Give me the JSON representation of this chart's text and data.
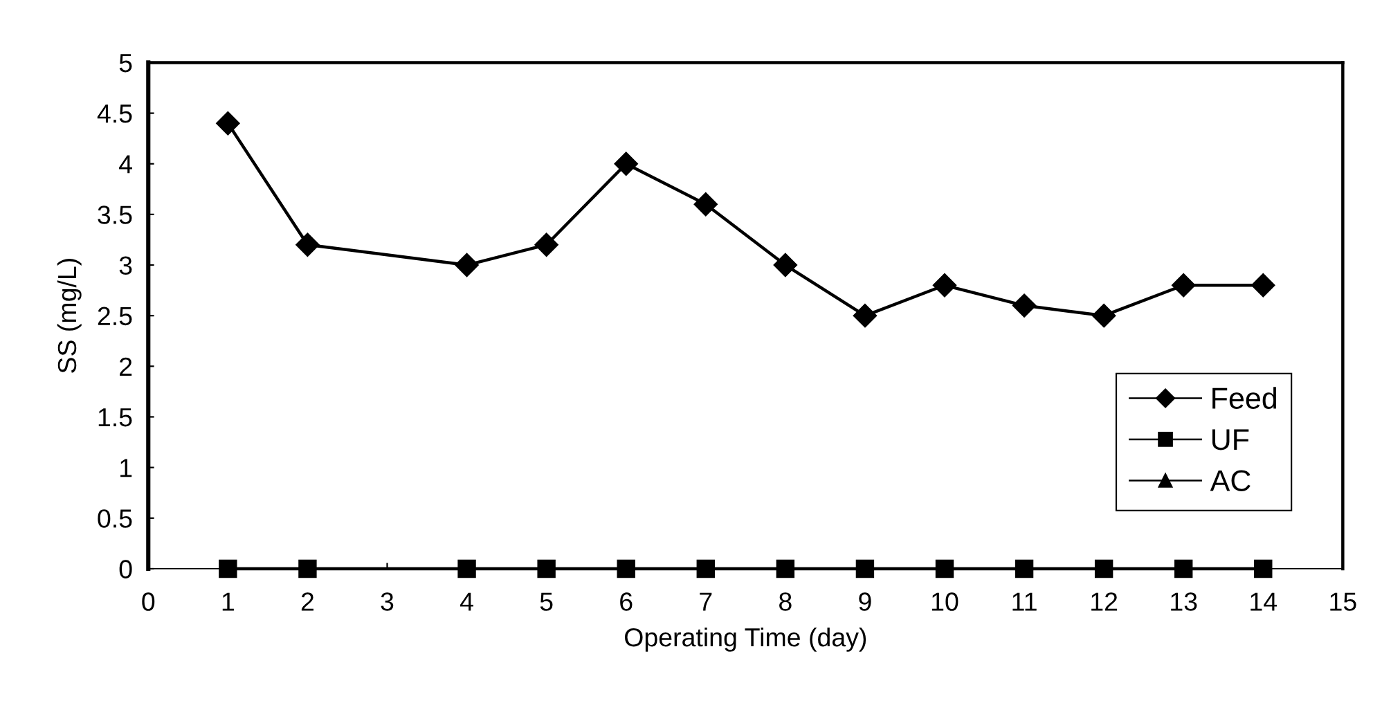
{
  "chart_data": {
    "type": "line",
    "xlabel": "Operating Time (day)",
    "ylabel": "SS (mg/L)",
    "x": [
      1,
      2,
      4,
      5,
      6,
      7,
      8,
      9,
      10,
      11,
      12,
      13,
      14
    ],
    "series": [
      {
        "name": "Feed",
        "color": "#000000",
        "marker": "diamond",
        "values": [
          4.4,
          3.2,
          3.0,
          3.2,
          4.0,
          3.6,
          3.0,
          2.5,
          2.8,
          2.6,
          2.5,
          2.8,
          2.8
        ]
      },
      {
        "name": "UF",
        "color": "#000000",
        "marker": "square",
        "values": [
          0,
          0,
          0,
          0,
          0,
          0,
          0,
          0,
          0,
          0,
          0,
          0,
          0
        ]
      },
      {
        "name": "AC",
        "color": "#000000",
        "marker": "triangle",
        "values": [
          null,
          null,
          null,
          null,
          null,
          null,
          null,
          null,
          null,
          null,
          null,
          null,
          null
        ]
      }
    ],
    "xlim": [
      0,
      15
    ],
    "xticks": [
      0,
      1,
      2,
      3,
      4,
      5,
      6,
      7,
      8,
      9,
      10,
      11,
      12,
      13,
      14,
      15
    ],
    "ylim": [
      0,
      5
    ],
    "yticks": [
      0,
      0.5,
      1,
      1.5,
      2,
      2.5,
      3,
      3.5,
      4,
      4.5,
      5
    ],
    "grid": false,
    "legend": "bottom right",
    "line_style": "solid"
  }
}
